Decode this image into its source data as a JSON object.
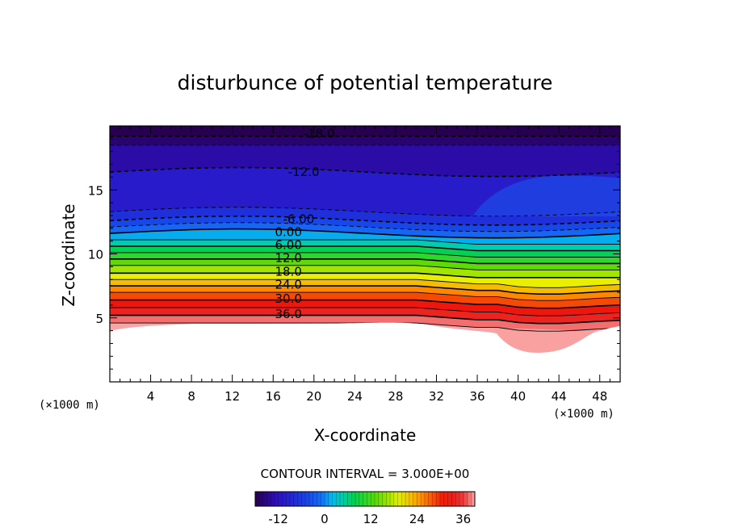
{
  "chart_data": {
    "type": "contour",
    "title": "disturbunce of potential temperature",
    "xlabel": "X-coordinate",
    "ylabel": "Z-coordinate",
    "x_unit": "(×1000 m)",
    "z_unit": "(×1000 m)",
    "xlim": [
      0,
      50
    ],
    "ylim": [
      0,
      20
    ],
    "x_ticks": [
      "4",
      "8",
      "12",
      "16",
      "20",
      "24",
      "28",
      "32",
      "36",
      "40",
      "44",
      "48"
    ],
    "y_ticks": [
      "5",
      "10",
      "15"
    ],
    "contour_interval_text": "CONTOUR INTERVAL = 3.000E+00",
    "contour_interval": 3.0,
    "value_range": [
      -18,
      39
    ],
    "contour_labels": [
      {
        "text": "-18.0",
        "x": 20.5,
        "z": 19.4
      },
      {
        "text": "-12.0",
        "x": 19.0,
        "z": 16.4
      },
      {
        "text": "-6.00",
        "x": 18.5,
        "z": 12.7
      },
      {
        "text": "0.00",
        "x": 17.5,
        "z": 11.7
      },
      {
        "text": "6.00",
        "x": 17.5,
        "z": 10.7
      },
      {
        "text": "12.0",
        "x": 17.5,
        "z": 9.7
      },
      {
        "text": "18.0",
        "x": 17.5,
        "z": 8.6
      },
      {
        "text": "24.0",
        "x": 17.5,
        "z": 7.6
      },
      {
        "text": "30.0",
        "x": 17.5,
        "z": 6.5
      },
      {
        "text": "36.0",
        "x": 17.5,
        "z": 5.3
      }
    ],
    "contour_levels_z_at_x20": [
      {
        "level": -18,
        "z": 19.2
      },
      {
        "level": -15,
        "z": 18.5
      },
      {
        "level": -12,
        "z": 16.4
      },
      {
        "level": -9,
        "z": 13.3
      },
      {
        "level": -6,
        "z": 12.6
      },
      {
        "level": -3,
        "z": 12.1
      },
      {
        "level": 0,
        "z": 11.6
      },
      {
        "level": 3,
        "z": 11.1
      },
      {
        "level": 6,
        "z": 10.6
      },
      {
        "level": 9,
        "z": 10.1
      },
      {
        "level": 12,
        "z": 9.6
      },
      {
        "level": 15,
        "z": 9.1
      },
      {
        "level": 18,
        "z": 8.5
      },
      {
        "level": 21,
        "z": 8.0
      },
      {
        "level": 24,
        "z": 7.5
      },
      {
        "level": 27,
        "z": 7.0
      },
      {
        "level": 30,
        "z": 6.4
      },
      {
        "level": 33,
        "z": 5.8
      },
      {
        "level": 36,
        "z": 5.2
      },
      {
        "level": 39,
        "z": 4.6
      }
    ],
    "colorbar": {
      "min": -18,
      "max": 39,
      "ticks": [
        "-12",
        "0",
        "12",
        "24",
        "36"
      ]
    }
  }
}
